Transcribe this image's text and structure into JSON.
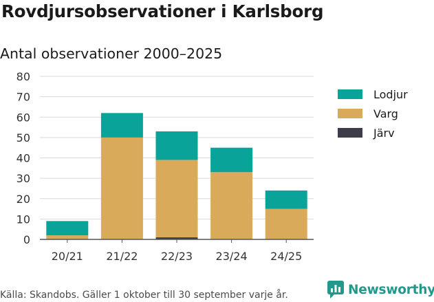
{
  "title": "Rovdjursobservationer i Karlsborg",
  "subtitle": "Antal observationer 2000–2025",
  "footer": "Källa: Skandobs. Gäller 1 oktober till 30 september varje år.",
  "brand": {
    "name": "Newsworthy",
    "color": "#22998a"
  },
  "chart_data": {
    "type": "bar",
    "stacked": true,
    "categories": [
      "20/21",
      "21/22",
      "22/23",
      "23/24",
      "24/25"
    ],
    "series": [
      {
        "name": "Järv",
        "color": "#3f3c4a",
        "values": [
          0,
          0,
          1,
          0,
          0
        ]
      },
      {
        "name": "Varg",
        "color": "#d9aa5a",
        "values": [
          2,
          50,
          38,
          33,
          15
        ]
      },
      {
        "name": "Lodjur",
        "color": "#0aa39a",
        "values": [
          7,
          12,
          14,
          12,
          9
        ]
      }
    ],
    "legend_order": [
      "Lodjur",
      "Varg",
      "Järv"
    ],
    "legend_position": "right",
    "ylim": [
      0,
      80
    ],
    "yticks": [
      0,
      10,
      20,
      30,
      40,
      50,
      60,
      70,
      80
    ],
    "grid": "horizontal"
  }
}
